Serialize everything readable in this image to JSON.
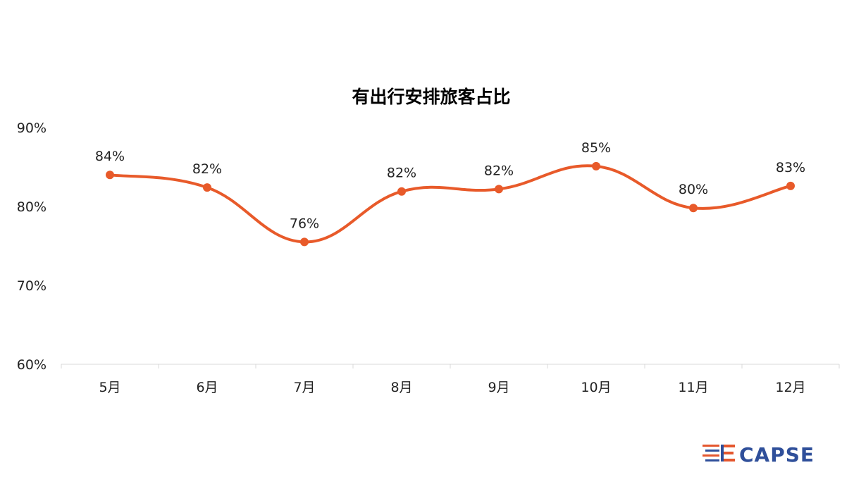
{
  "chart_data": {
    "type": "line",
    "title": "有出行安排旅客占比",
    "categories": [
      "5月",
      "6月",
      "7月",
      "8月",
      "9月",
      "10月",
      "11月",
      "12月"
    ],
    "values": [
      84,
      82.4,
      75.5,
      81.9,
      82.2,
      85.1,
      79.8,
      82.6
    ],
    "data_labels": [
      "84%",
      "82%",
      "76%",
      "82%",
      "82%",
      "85%",
      "80%",
      "83%"
    ],
    "y_ticks": [
      "60%",
      "70%",
      "80%",
      "90%"
    ],
    "ylim": [
      60,
      90
    ],
    "xlabel": "",
    "ylabel": "",
    "grid": false,
    "line_color": "#e85a2a"
  },
  "logo": {
    "text": "CAPSE",
    "color": "#2f4f9a",
    "accent_color": "#e4572e"
  }
}
